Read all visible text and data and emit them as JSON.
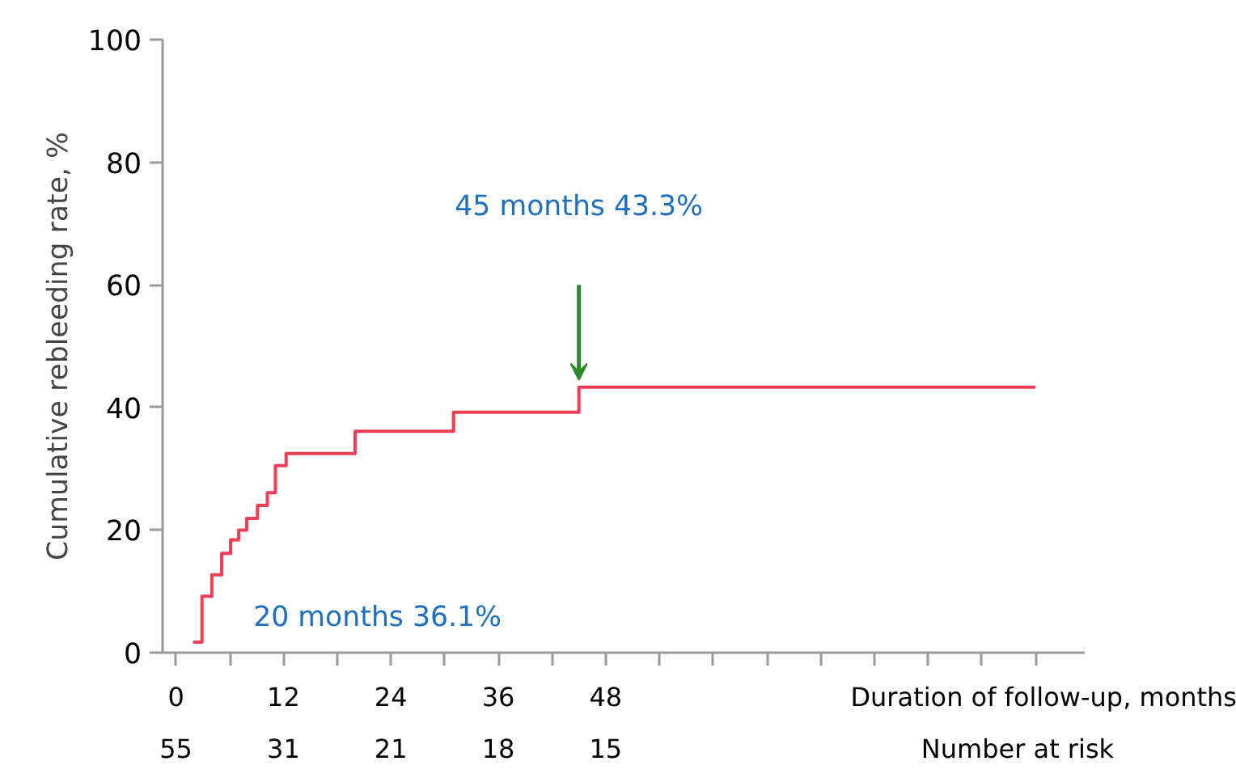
{
  "chart_data": {
    "type": "step",
    "xlabel": "Duration of follow-up, months",
    "ylabel": "Cumulative rebleeding rate, %",
    "x": [
      1.9,
      2.9,
      4.0,
      5.1,
      6.1,
      7.0,
      7.9,
      9.1,
      10.2,
      11.1,
      12.3,
      20,
      31,
      45,
      96
    ],
    "series": [
      {
        "color": "#f03c55",
        "values": [
          1.7,
          9.2,
          12.7,
          16.2,
          18.4,
          20,
          21.9,
          24,
          26.1,
          30.5,
          32.5,
          36.1,
          39.2,
          43.3,
          43.3
        ]
      }
    ],
    "xlim": [
      -1.5,
      101.5
    ],
    "ylim": [
      0,
      100
    ],
    "xticks": [
      0,
      {
        "value": 6,
        "label": null
      },
      12,
      {
        "value": 18,
        "label": null
      },
      24,
      {
        "value": 30,
        "label": null
      },
      36,
      {
        "value": 42,
        "label": null
      },
      48,
      {
        "value": 54,
        "label": null
      },
      {
        "value": 60,
        "label": null
      },
      {
        "value": 66,
        "label": null
      },
      {
        "value": 72,
        "label": null
      },
      {
        "value": 78,
        "label": null
      },
      {
        "value": 84,
        "label": null
      },
      {
        "value": 90,
        "label": null
      },
      {
        "value": 96,
        "label": null
      }
    ],
    "yticks": [
      0,
      20,
      40,
      60,
      80,
      100
    ],
    "grid": false,
    "annotations": [
      "45 months 43.3%",
      "20 months 36.1%",
      "Number at risk",
      "55",
      "31",
      "21",
      "18",
      "15"
    ]
  }
}
